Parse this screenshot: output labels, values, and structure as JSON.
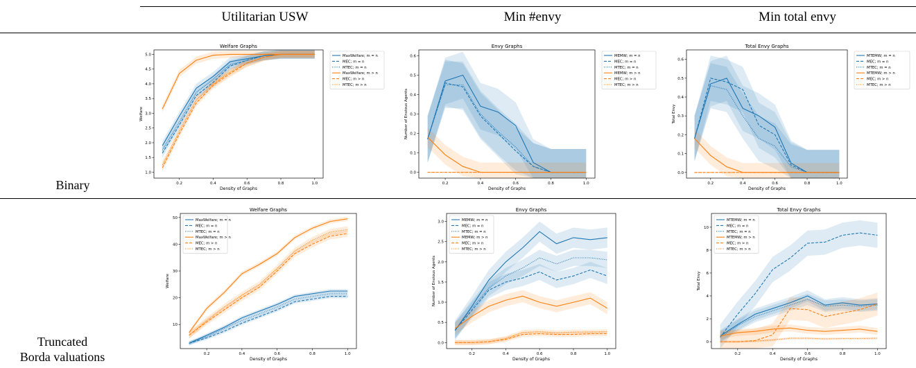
{
  "table": {
    "column_headers": [
      "Utilitarian USW",
      "Min #envy",
      "Min total envy"
    ],
    "row_labels": [
      [
        "Binary"
      ],
      [
        "Truncated",
        "Borda valuations"
      ]
    ]
  },
  "colors": {
    "blue": "#1f77b4",
    "orange": "#ff7f0e"
  },
  "chart_data": [
    {
      "type": "line",
      "title": "Welfare Graphs",
      "xlabel": "Density of Graphs",
      "ylabel": "Welfare",
      "xlim": [
        0.05,
        1.05
      ],
      "ylim": [
        0.8,
        5.15
      ],
      "xticks": [
        0.2,
        0.4,
        0.6,
        0.8,
        1.0
      ],
      "yticks": [
        1.0,
        1.5,
        2.0,
        2.5,
        3.0,
        3.5,
        4.0,
        4.5,
        5.0
      ],
      "legend_position": "outside-right",
      "x": [
        0.1,
        0.2,
        0.3,
        0.4,
        0.5,
        0.6,
        0.7,
        0.8,
        0.9,
        1.0
      ],
      "series": [
        {
          "name": "MaxWelfare; m = n",
          "color": "blue",
          "style": "solid",
          "values": [
            1.9,
            2.9,
            3.85,
            4.25,
            4.75,
            4.85,
            4.95,
            5.0,
            5.0,
            5.0
          ],
          "band": 0.15
        },
        {
          "name": "MEC; m = n",
          "color": "blue",
          "style": "dashed",
          "values": [
            1.65,
            2.6,
            3.6,
            4.05,
            4.6,
            4.8,
            4.95,
            5.0,
            5.0,
            5.0
          ],
          "band": 0.15
        },
        {
          "name": "MTEC; m = n",
          "color": "blue",
          "style": "dotted",
          "values": [
            1.75,
            2.7,
            3.7,
            4.15,
            4.65,
            4.8,
            4.95,
            5.0,
            5.0,
            5.0
          ],
          "band": 0.15
        },
        {
          "name": "MaxWelfare; m > n",
          "color": "orange",
          "style": "solid",
          "values": [
            3.15,
            4.35,
            4.8,
            4.97,
            5.0,
            5.0,
            5.0,
            5.0,
            5.0,
            5.0
          ],
          "band": 0.12
        },
        {
          "name": "MEC; m > n",
          "color": "orange",
          "style": "dashed",
          "values": [
            1.15,
            2.3,
            3.35,
            3.95,
            4.35,
            4.7,
            4.9,
            5.0,
            5.0,
            5.0
          ],
          "band": 0.12
        },
        {
          "name": "MTEC; m > n",
          "color": "orange",
          "style": "dotted",
          "values": [
            1.25,
            2.4,
            3.45,
            4.0,
            4.4,
            4.7,
            4.9,
            5.0,
            5.0,
            5.0
          ],
          "band": 0.12
        }
      ]
    },
    {
      "type": "line",
      "title": "Envy Graphs",
      "xlabel": "Density of Graphs",
      "ylabel": "Number of Envious Agents",
      "xlim": [
        0.05,
        1.05
      ],
      "ylim": [
        -0.03,
        0.63
      ],
      "xticks": [
        0.2,
        0.4,
        0.6,
        0.8,
        1.0
      ],
      "yticks": [
        0.0,
        0.1,
        0.2,
        0.3,
        0.4,
        0.5,
        0.6
      ],
      "legend_position": "outside-right",
      "x": [
        0.1,
        0.2,
        0.3,
        0.4,
        0.5,
        0.6,
        0.7,
        0.8,
        0.9,
        1.0
      ],
      "series": [
        {
          "name": "MEMW; m = n",
          "color": "blue",
          "style": "solid",
          "values": [
            0.17,
            0.47,
            0.5,
            0.34,
            0.31,
            0.24,
            0.05,
            0.0,
            0.0,
            0.0
          ],
          "band": 0.12
        },
        {
          "name": "MEC; m = n",
          "color": "blue",
          "style": "dashed",
          "values": [
            0.17,
            0.46,
            0.44,
            0.29,
            0.2,
            0.11,
            0.03,
            0.0,
            0.0,
            0.0
          ],
          "band": 0.12
        },
        {
          "name": "MTEC; m = n",
          "color": "blue",
          "style": "dotted",
          "values": [
            0.17,
            0.45,
            0.45,
            0.3,
            0.21,
            0.13,
            0.03,
            0.0,
            0.0,
            0.0
          ],
          "band": 0.12
        },
        {
          "name": "MEMW; m > n",
          "color": "orange",
          "style": "solid",
          "values": [
            0.18,
            0.09,
            0.03,
            0.0,
            0.0,
            0.0,
            0.0,
            0.0,
            0.0,
            0.0
          ],
          "band": 0.05
        },
        {
          "name": "MEC; m > n",
          "color": "orange",
          "style": "dashed",
          "values": [
            0.0,
            0.0,
            0.0,
            0.0,
            0.0,
            0.0,
            0.0,
            0.0,
            0.0,
            0.0
          ],
          "band": 0.0
        },
        {
          "name": "MTEC; m > n",
          "color": "orange",
          "style": "dotted",
          "values": [
            0.0,
            0.0,
            0.0,
            0.0,
            0.0,
            0.0,
            0.0,
            0.0,
            0.0,
            0.0
          ],
          "band": 0.0
        }
      ]
    },
    {
      "type": "line",
      "title": "Total Envy Graphs",
      "xlabel": "Density of Graphs",
      "ylabel": "Total Envy",
      "xlim": [
        0.05,
        1.05
      ],
      "ylim": [
        -0.03,
        0.65
      ],
      "xticks": [
        0.2,
        0.4,
        0.6,
        0.8,
        1.0
      ],
      "yticks": [
        0.0,
        0.1,
        0.2,
        0.3,
        0.4,
        0.5,
        0.6
      ],
      "legend_position": "outside-right",
      "x": [
        0.1,
        0.2,
        0.3,
        0.4,
        0.5,
        0.6,
        0.7,
        0.8,
        0.9,
        1.0
      ],
      "series": [
        {
          "name": "MTEMW; m = n",
          "color": "blue",
          "style": "solid",
          "values": [
            0.18,
            0.47,
            0.5,
            0.34,
            0.3,
            0.24,
            0.05,
            0.0,
            0.0,
            0.0
          ],
          "band": 0.12
        },
        {
          "name": "MEC; m = n",
          "color": "blue",
          "style": "dashed",
          "values": [
            0.18,
            0.5,
            0.48,
            0.44,
            0.25,
            0.2,
            0.04,
            0.0,
            0.0,
            0.0
          ],
          "band": 0.12
        },
        {
          "name": "MTEC; m = n",
          "color": "blue",
          "style": "dotted",
          "values": [
            0.18,
            0.46,
            0.44,
            0.3,
            0.18,
            0.14,
            0.03,
            0.0,
            0.0,
            0.0
          ],
          "band": 0.12
        },
        {
          "name": "MTEMW; m > n",
          "color": "orange",
          "style": "solid",
          "values": [
            0.18,
            0.09,
            0.03,
            0.0,
            0.0,
            0.0,
            0.0,
            0.0,
            0.0,
            0.0
          ],
          "band": 0.05
        },
        {
          "name": "MEC; m > n",
          "color": "orange",
          "style": "dashed",
          "values": [
            0.0,
            0.0,
            0.0,
            0.0,
            0.0,
            0.0,
            0.0,
            0.0,
            0.0,
            0.0
          ],
          "band": 0.0
        },
        {
          "name": "MTEC; m > n",
          "color": "orange",
          "style": "dotted",
          "values": [
            0.0,
            0.0,
            0.0,
            0.0,
            0.0,
            0.0,
            0.0,
            0.0,
            0.0,
            0.0
          ],
          "band": 0.0
        }
      ]
    },
    {
      "type": "line",
      "title": "Welfare Graphs",
      "xlabel": "Density of Graphs",
      "ylabel": "Welfare",
      "xlim": [
        0.05,
        1.05
      ],
      "ylim": [
        1.0,
        51.5
      ],
      "xticks": [
        0.2,
        0.4,
        0.6,
        0.8,
        1.0
      ],
      "yticks": [
        10,
        20,
        30,
        40,
        50
      ],
      "legend_position": "upper-left",
      "x": [
        0.1,
        0.2,
        0.3,
        0.4,
        0.5,
        0.6,
        0.7,
        0.8,
        0.9,
        1.0
      ],
      "series": [
        {
          "name": "MaxWelfare; m = n",
          "color": "blue",
          "style": "solid",
          "values": [
            3.0,
            6.0,
            9.0,
            12.5,
            15.0,
            17.5,
            20.5,
            21.5,
            22.5,
            22.5
          ],
          "band": 0.7
        },
        {
          "name": "MEC; m = n",
          "color": "blue",
          "style": "dashed",
          "values": [
            3.0,
            5.0,
            7.5,
            10.5,
            13.0,
            15.5,
            18.5,
            19.5,
            20.5,
            20.5
          ],
          "band": 0.7
        },
        {
          "name": "MTEC; m = n",
          "color": "blue",
          "style": "dotted",
          "values": [
            3.0,
            5.5,
            8.5,
            11.5,
            14.0,
            16.5,
            19.5,
            20.5,
            21.5,
            21.5
          ],
          "band": 0.7
        },
        {
          "name": "MaxWelfare; m > n",
          "color": "orange",
          "style": "solid",
          "values": [
            7.0,
            16.0,
            22.0,
            29.0,
            32.5,
            36.5,
            42.5,
            46.0,
            48.5,
            49.5
          ],
          "band": 0.8
        },
        {
          "name": "MEC; m > n",
          "color": "orange",
          "style": "dashed",
          "values": [
            6.0,
            11.0,
            15.5,
            20.0,
            24.0,
            30.0,
            36.5,
            40.0,
            43.0,
            44.0
          ],
          "band": 1.2
        },
        {
          "name": "MTEC; m > n",
          "color": "orange",
          "style": "dotted",
          "values": [
            6.0,
            11.5,
            16.5,
            21.0,
            25.0,
            31.0,
            37.5,
            41.5,
            44.5,
            45.5
          ],
          "band": 1.2
        }
      ]
    },
    {
      "type": "line",
      "title": "Envy Graphs",
      "xlabel": "Density of Graphs",
      "ylabel": "Number of Envious Agents",
      "xlim": [
        0.05,
        1.05
      ],
      "ylim": [
        -0.15,
        3.2
      ],
      "xticks": [
        0.2,
        0.4,
        0.6,
        0.8,
        1.0
      ],
      "yticks": [
        0.0,
        0.5,
        1.0,
        1.5,
        2.0,
        2.5,
        3.0
      ],
      "legend_position": "upper-left",
      "x": [
        0.1,
        0.2,
        0.3,
        0.4,
        0.5,
        0.6,
        0.7,
        0.8,
        0.9,
        1.0
      ],
      "series": [
        {
          "name": "MEMW; m = n",
          "color": "blue",
          "style": "solid",
          "values": [
            0.3,
            0.9,
            1.55,
            2.0,
            2.35,
            2.75,
            2.45,
            2.6,
            2.55,
            2.6
          ],
          "band": 0.25
        },
        {
          "name": "MEC; m = n",
          "color": "blue",
          "style": "dashed",
          "values": [
            0.3,
            0.8,
            1.3,
            1.5,
            1.6,
            1.75,
            1.55,
            1.65,
            1.8,
            1.65
          ],
          "band": 0.2
        },
        {
          "name": "MTEC; m = n",
          "color": "blue",
          "style": "dotted",
          "values": [
            0.3,
            0.85,
            1.35,
            1.65,
            1.85,
            2.1,
            1.95,
            2.1,
            2.1,
            2.05
          ],
          "band": 0.2
        },
        {
          "name": "MEMW; m > n",
          "color": "orange",
          "style": "solid",
          "values": [
            0.35,
            0.65,
            0.9,
            1.05,
            1.15,
            1.0,
            0.9,
            1.0,
            1.1,
            0.85
          ],
          "band": 0.15
        },
        {
          "name": "MEC; m > n",
          "color": "orange",
          "style": "dashed",
          "values": [
            0.0,
            0.0,
            0.02,
            0.08,
            0.2,
            0.22,
            0.2,
            0.2,
            0.22,
            0.22
          ],
          "band": 0.06
        },
        {
          "name": "MTEC; m > n",
          "color": "orange",
          "style": "dotted",
          "values": [
            0.0,
            0.0,
            0.02,
            0.1,
            0.25,
            0.27,
            0.24,
            0.26,
            0.26,
            0.27
          ],
          "band": 0.06
        }
      ]
    },
    {
      "type": "line",
      "title": "Total Envy Graphs",
      "xlabel": "Density of Graphs",
      "ylabel": "Total Envy",
      "xlim": [
        0.05,
        1.05
      ],
      "ylim": [
        -0.6,
        11.2
      ],
      "xticks": [
        0.2,
        0.4,
        0.6,
        0.8,
        1.0
      ],
      "yticks": [
        0,
        2,
        4,
        6,
        8,
        10
      ],
      "legend_position": "upper-left",
      "x": [
        0.1,
        0.2,
        0.3,
        0.4,
        0.5,
        0.6,
        0.7,
        0.8,
        0.9,
        1.0
      ],
      "series": [
        {
          "name": "MTEMW; m = n",
          "color": "blue",
          "style": "solid",
          "values": [
            0.5,
            1.5,
            2.4,
            2.9,
            3.4,
            4.0,
            3.2,
            3.4,
            3.2,
            3.3
          ],
          "band": 0.5
        },
        {
          "name": "MEC; m = n",
          "color": "blue",
          "style": "dashed",
          "values": [
            0.4,
            2.4,
            4.2,
            6.3,
            7.3,
            8.6,
            8.7,
            9.3,
            9.5,
            9.3
          ],
          "band": 1.1
        },
        {
          "name": "MTEC; m = n",
          "color": "blue",
          "style": "dotted",
          "values": [
            0.4,
            1.4,
            2.2,
            2.7,
            3.2,
            3.7,
            3.1,
            3.2,
            3.1,
            3.2
          ],
          "band": 0.5
        },
        {
          "name": "MTEMW; m > n",
          "color": "orange",
          "style": "solid",
          "values": [
            0.5,
            0.8,
            0.9,
            1.1,
            1.2,
            1.0,
            0.9,
            1.0,
            1.1,
            0.9
          ],
          "band": 0.3
        },
        {
          "name": "MEC; m > n",
          "color": "orange",
          "style": "dashed",
          "values": [
            0.0,
            0.0,
            0.1,
            0.6,
            2.9,
            2.8,
            2.2,
            2.5,
            2.8,
            3.3
          ],
          "band": 1.0
        },
        {
          "name": "MTEC; m > n",
          "color": "orange",
          "style": "dotted",
          "values": [
            0.0,
            0.0,
            0.05,
            0.15,
            0.3,
            0.3,
            0.25,
            0.28,
            0.28,
            0.3
          ],
          "band": 0.1
        }
      ]
    }
  ]
}
